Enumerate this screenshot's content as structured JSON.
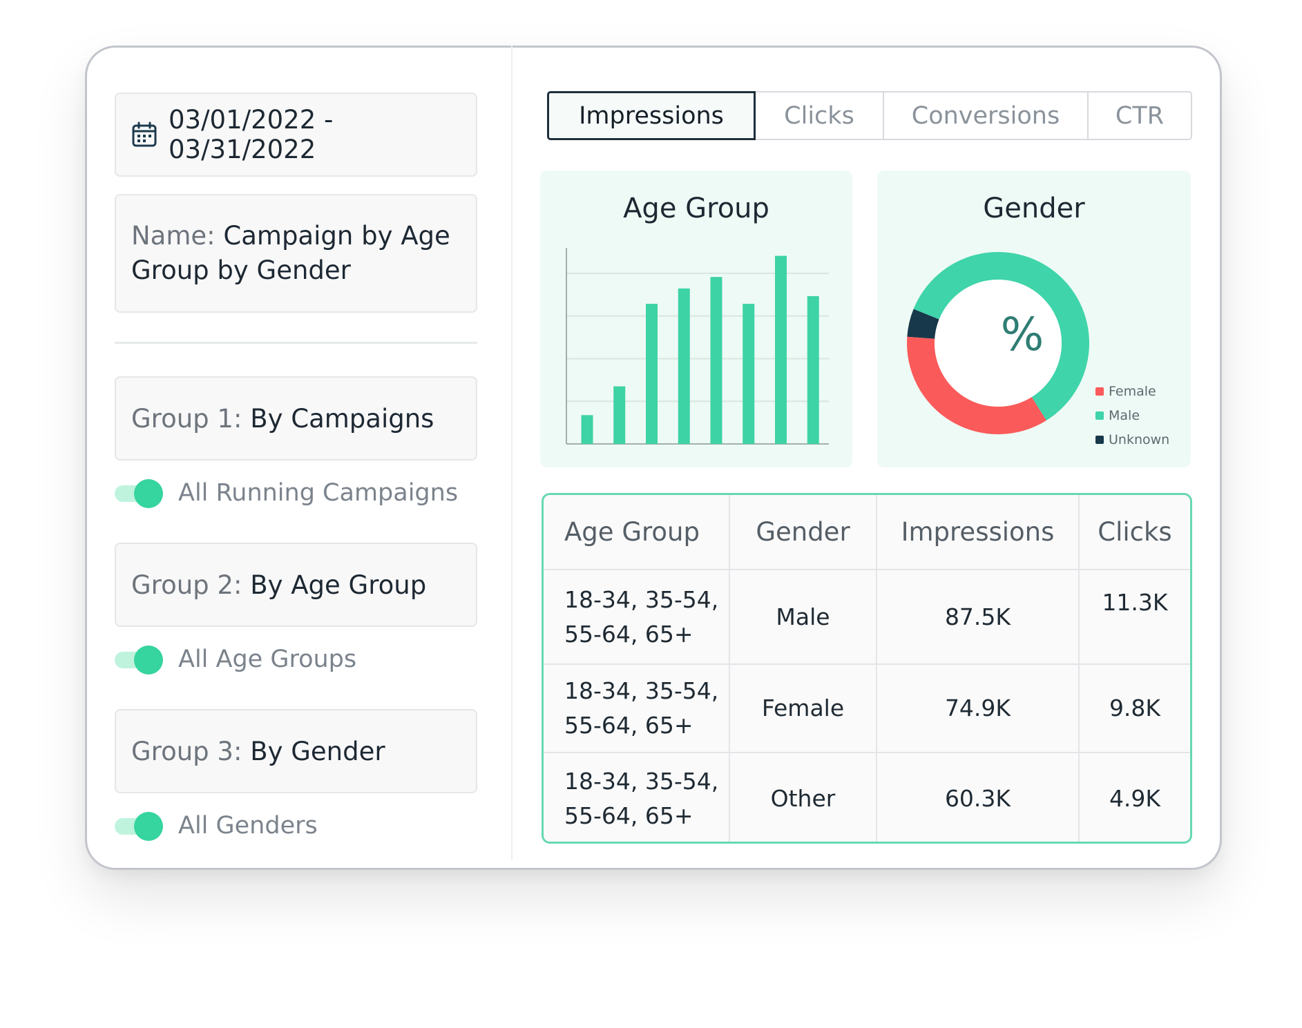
{
  "filters": {
    "date_range": "03/01/2022 - 03/31/2022",
    "name_label": "Name:",
    "name_value": "Campaign by Age Group by Gender"
  },
  "groups": [
    {
      "label": "Group 1:",
      "value": "By Campaigns",
      "toggle_label": "All Running Campaigns",
      "toggle_on": true
    },
    {
      "label": "Group 2:",
      "value": "By Age Group",
      "toggle_label": "All Age Groups",
      "toggle_on": true
    },
    {
      "label": "Group 3:",
      "value": "By Gender",
      "toggle_label": "All Genders",
      "toggle_on": true
    }
  ],
  "tabs": [
    {
      "label": "Impressions",
      "active": true
    },
    {
      "label": "Clicks",
      "active": false
    },
    {
      "label": "Conversions",
      "active": false
    },
    {
      "label": "CTR",
      "active": false
    }
  ],
  "age_panel": {
    "title": "Age Group"
  },
  "gender_panel": {
    "title": "Gender",
    "center_symbol": "%"
  },
  "chart_data": [
    {
      "type": "bar",
      "title": "Age Group",
      "categories": [
        "",
        "",
        "",
        "",
        "",
        "",
        "",
        ""
      ],
      "values": [
        15,
        30,
        73,
        81,
        87,
        73,
        98,
        77
      ],
      "ylim": [
        0,
        100
      ],
      "grid": true,
      "color": "#3dd3a5"
    },
    {
      "type": "pie",
      "title": "Gender",
      "donut": true,
      "labels": [
        "Female",
        "Male",
        "Unknown"
      ],
      "values": [
        35,
        60,
        5
      ],
      "colors": [
        "#fb5a5a",
        "#3fd4aa",
        "#17384a"
      ],
      "legend": "bottom-right"
    }
  ],
  "table": {
    "headers": [
      "Age Group",
      "Gender",
      "Impressions",
      "Clicks"
    ],
    "rows": [
      {
        "age_line1": "18-34, 35-54,",
        "age_line2": "55-64, 65+",
        "gender": "Male",
        "impressions": "87.5K",
        "clicks": "11.3K"
      },
      {
        "age_line1": "18-34, 35-54,",
        "age_line2": "55-64, 65+",
        "gender": "Female",
        "impressions": "74.9K",
        "clicks": "9.8K"
      },
      {
        "age_line1": "18-34, 35-54,",
        "age_line2": "55-64, 65+",
        "gender": "Other",
        "impressions": "60.3K",
        "clicks": "4.9K"
      }
    ]
  }
}
